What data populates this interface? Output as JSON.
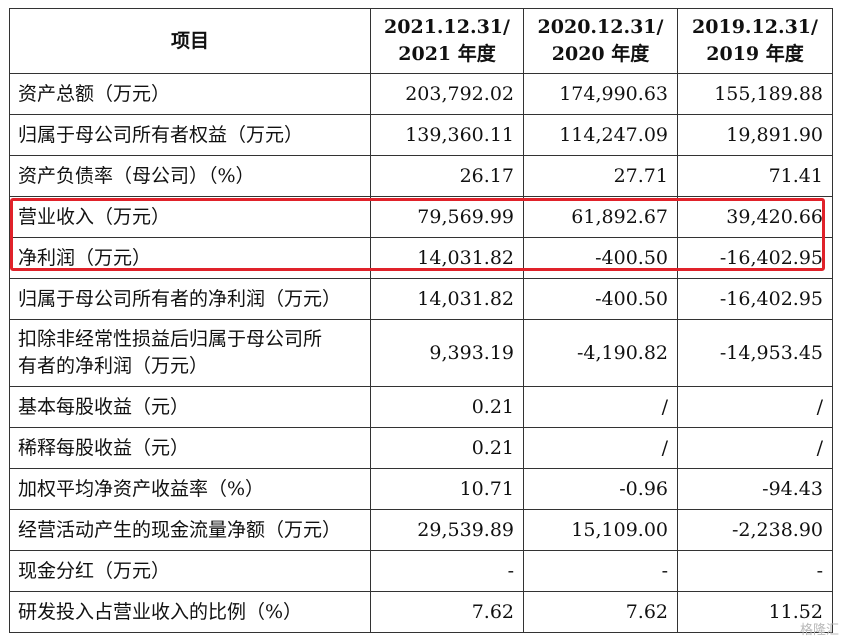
{
  "header": {
    "item": "项目",
    "col1": [
      "2021.12.31/",
      "2021 年度"
    ],
    "col2": [
      "2020.12.31/",
      "2020 年度"
    ],
    "col3": [
      "2019.12.31/",
      "2019 年度"
    ]
  },
  "rows": [
    {
      "label": [
        "资产总额（万元）"
      ],
      "v": [
        "203,792.02",
        "174,990.63",
        "155,189.88"
      ]
    },
    {
      "label": [
        "归属于母公司所有者权益（万元）"
      ],
      "v": [
        "139,360.11",
        "114,247.09",
        "19,891.90"
      ]
    },
    {
      "label": [
        "资产负债率（母公司）（%）"
      ],
      "v": [
        "26.17",
        "27.71",
        "71.41"
      ]
    },
    {
      "label": [
        "营业收入（万元）"
      ],
      "v": [
        "79,569.99",
        "61,892.67",
        "39,420.66"
      ]
    },
    {
      "label": [
        "净利润（万元）"
      ],
      "v": [
        "14,031.82",
        "-400.50",
        "-16,402.95"
      ]
    },
    {
      "label": [
        "归属于母公司所有者的净利润（万元）"
      ],
      "v": [
        "14,031.82",
        "-400.50",
        "-16,402.95"
      ]
    },
    {
      "label": [
        "扣除非经常性损益后归属于母公司所",
        "有者的净利润（万元）"
      ],
      "v": [
        "9,393.19",
        "-4,190.82",
        "-14,953.45"
      ]
    },
    {
      "label": [
        "基本每股收益（元）"
      ],
      "v": [
        "0.21",
        "/",
        "/"
      ]
    },
    {
      "label": [
        "稀释每股收益（元）"
      ],
      "v": [
        "0.21",
        "/",
        "/"
      ]
    },
    {
      "label": [
        "加权平均净资产收益率（%）"
      ],
      "v": [
        "10.71",
        "-0.96",
        "-94.43"
      ]
    },
    {
      "label": [
        "经营活动产生的现金流量净额（万元）"
      ],
      "v": [
        "29,539.89",
        "15,109.00",
        "-2,238.90"
      ]
    },
    {
      "label": [
        "现金分红（万元）"
      ],
      "v": [
        "-",
        "-",
        "-"
      ]
    },
    {
      "label": [
        "研发投入占营业收入的比例（%）"
      ],
      "v": [
        "7.62",
        "7.62",
        "11.52"
      ]
    }
  ],
  "highlight_color": "#e0222a",
  "watermark": "格隆汇"
}
